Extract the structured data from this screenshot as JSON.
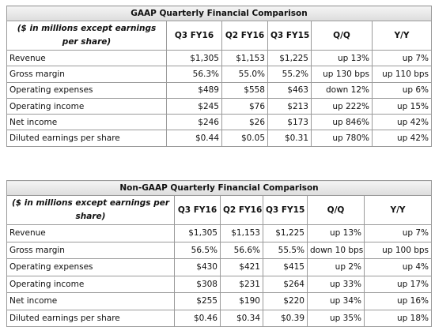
{
  "tables": [
    {
      "title": "GAAP Quarterly Financial Comparison",
      "header": [
        "($ in millions except earnings per share)",
        "Q3 FY16",
        "Q2 FY16",
        "Q3 FY15",
        "Q/Q",
        "Y/Y"
      ],
      "rows": [
        [
          "Revenue",
          "$1,305",
          "$1,153",
          "$1,225",
          "up 13%",
          "up 7%"
        ],
        [
          "Gross margin",
          "56.3%",
          "55.0%",
          "55.2%",
          "up 130 bps",
          "up 110 bps"
        ],
        [
          "Operating expenses",
          "$489",
          "$558",
          "$463",
          "down 12%",
          "up 6%"
        ],
        [
          "Operating income",
          "$245",
          "$76",
          "$213",
          "up 222%",
          "up 15%"
        ],
        [
          "Net income",
          "$246",
          "$26",
          "$173",
          "up 846%",
          "up 42%"
        ],
        [
          "Diluted earnings per share",
          "$0.44",
          "$0.05",
          "$0.31",
          "up 780%",
          "up 42%"
        ]
      ]
    },
    {
      "title": "Non-GAAP Quarterly Financial Comparison",
      "header": [
        "($ in millions except earnings per share)",
        "Q3 FY16",
        "Q2 FY16",
        "Q3 FY15",
        "Q/Q",
        "Y/Y"
      ],
      "rows": [
        [
          "Revenue",
          "$1,305",
          "$1,153",
          "$1,225",
          "up 13%",
          "up 7%"
        ],
        [
          "Gross margin",
          "56.5%",
          "56.6%",
          "55.5%",
          "down 10 bps",
          "up 100 bps"
        ],
        [
          "Operating expenses",
          "$430",
          "$421",
          "$415",
          "up 2%",
          "up 4%"
        ],
        [
          "Operating income",
          "$308",
          "$231",
          "$264",
          "up 33%",
          "up 17%"
        ],
        [
          "Net income",
          "$255",
          "$190",
          "$220",
          "up 34%",
          "up 16%"
        ],
        [
          "Diluted earnings per share",
          "$0.46",
          "$0.34",
          "$0.39",
          "up 35%",
          "up 18%"
        ]
      ]
    }
  ]
}
